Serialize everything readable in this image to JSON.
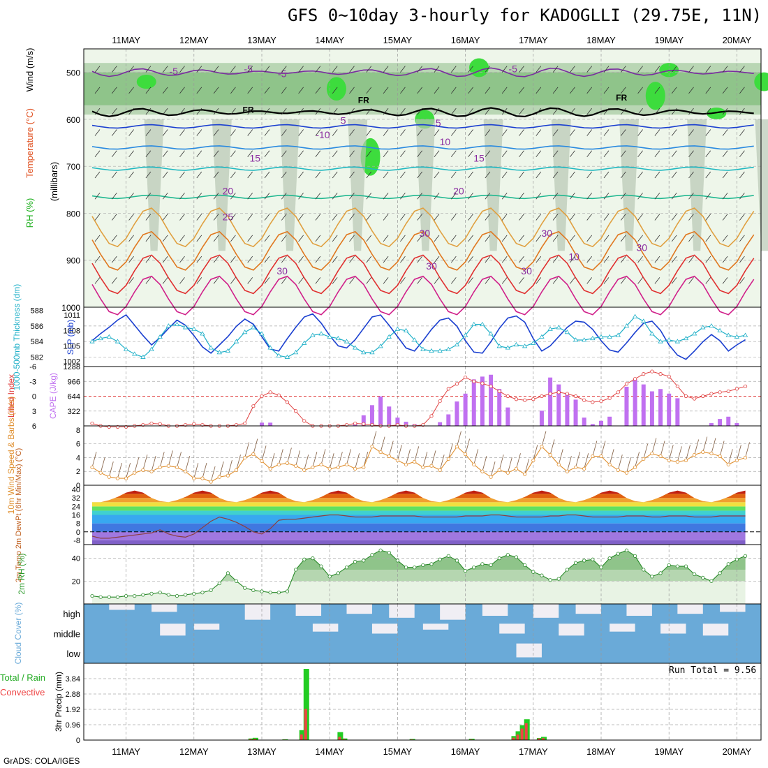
{
  "title": "GFS 0~10day 3-hourly for KADOGLLI (29.75E, 11N)",
  "credit": "GrADS: COLA/IGES",
  "run_total": "Run Total = 9.56",
  "dates": [
    "11MAY",
    "12MAY",
    "13MAY",
    "14MAY",
    "15MAY",
    "16MAY",
    "17MAY",
    "18MAY",
    "19MAY",
    "20MAY"
  ],
  "panel_labels": {
    "upper": [
      {
        "text": "RH (%)",
        "color": "#20b020"
      },
      {
        "text": "Temperature (°C)",
        "color": "#e05020"
      },
      {
        "text": "Wind (m/s)",
        "color": "#000000"
      }
    ],
    "upper_sub": "(millibars)",
    "thick": "1000-500mb Thickness (dm)",
    "slp": "SLP (mb)",
    "li": "Lifted Index",
    "cape": "CAPE (J/kg)",
    "wind10": "10m Wind Speed & Barbs (m/s)",
    "t2m": "2m Temp 2m DewPt (6hr Min/Max) (°C)",
    "rh2m": "2m RH (%)",
    "cloud": "Cloud Cover (%)",
    "precip_lab1": "Total / Rain",
    "precip_lab2": "Convective",
    "precip_lab3": "3hr Precip (mm)"
  },
  "colors": {
    "slp": "#1a3fd0",
    "thick": "#20b0c8",
    "li": "#e04040",
    "cape": "#c070f0",
    "wind": "#e09030",
    "barb": "#8b6a50",
    "rh_line": "#2a8a2a",
    "cloud": "#6aaad8",
    "precip_total": "#22cc22",
    "precip_conv": "#ee4444"
  },
  "chart_data": [
    {
      "type": "heatmap",
      "name": "vertical profile",
      "ylabel": "(millibars)",
      "ylim": [
        1000,
        450
      ],
      "yticks": [
        500,
        600,
        700,
        800,
        900,
        1000
      ],
      "temperature_contour_labels": [
        "-5",
        "-5",
        "-5",
        "-5",
        "5",
        "5",
        "-10",
        "10",
        "15",
        "15",
        "20",
        "20",
        "25",
        "30",
        "30",
        "30",
        "10",
        "30",
        "30",
        "30"
      ],
      "freezing_level_labels": [
        "FR",
        "FR",
        "FR"
      ],
      "isotherms_hpa": [
        {
          "temp": -5,
          "level": 500,
          "color": "#7a2ca0"
        },
        {
          "temp": 0,
          "level": 585,
          "color": "#000000"
        },
        {
          "temp": 5,
          "level": 615,
          "color": "#1a3fd0"
        },
        {
          "temp": 10,
          "level": 660,
          "color": "#2a8ae0"
        },
        {
          "temp": 15,
          "level": 705,
          "color": "#20b8c0"
        },
        {
          "temp": 20,
          "level": 765,
          "color": "#20b890"
        },
        {
          "temp": 25,
          "level": 830,
          "color": "#e0a040"
        },
        {
          "temp": 30,
          "level": 880,
          "color": "#e07820"
        },
        {
          "temp": 35,
          "level": 930,
          "color": "#e03030"
        },
        {
          "temp": 40,
          "level": 975,
          "color": "#d0208a"
        }
      ]
    },
    {
      "type": "line",
      "name": "SLP and thickness",
      "yticks_thick": [
        582,
        584,
        586,
        588
      ],
      "yticks_slp": [
        1002,
        1005,
        1008,
        1011
      ],
      "series": [
        {
          "name": "SLP (mb)",
          "values": [
            1006.0,
            1007.4,
            1008.6,
            1010.0,
            1011.0,
            1009.0,
            1007.0,
            1005.2,
            1006.6,
            1008.4,
            1010.0,
            1009.0,
            1007.0,
            1004.8,
            1003.6,
            1005.2,
            1006.8,
            1008.8,
            1010.2,
            1009.2,
            1006.8,
            1004.4,
            1004.0,
            1006.4,
            1008.6,
            1010.6,
            1011.2,
            1009.4,
            1007.0,
            1005.0,
            1004.6,
            1006.2,
            1008.4,
            1010.6,
            1011.0,
            1009.0,
            1006.8,
            1004.6,
            1004.0,
            1006.0,
            1008.2,
            1010.0,
            1010.4,
            1008.8,
            1006.0,
            1003.8,
            1003.6,
            1005.8,
            1008.4,
            1010.4,
            1010.8,
            1009.6,
            1006.4,
            1004.0,
            1005.0,
            1006.8,
            1008.6,
            1009.8,
            1009.6,
            1008.2,
            1006.0,
            1004.2,
            1003.8,
            1005.6,
            1007.6,
            1009.4,
            1009.8,
            1008.0,
            1005.2,
            1003.2,
            1002.4,
            1004.0,
            1005.8,
            1007.2,
            1006.0,
            1004.0,
            1005.2,
            1006.2
          ]
        },
        {
          "name": "1000-500mb Thickness (dm)",
          "values": [
            584.0,
            584.4,
            584.6,
            584.0,
            583.0,
            582.4,
            582.0,
            583.0,
            584.6,
            586.0,
            586.2,
            585.8,
            585.6,
            585.0,
            583.2,
            582.6,
            582.8,
            584.0,
            585.2,
            585.8,
            585.0,
            583.2,
            582.2,
            582.0,
            582.6,
            583.8,
            584.8,
            585.0,
            584.6,
            584.4,
            584.0,
            583.2,
            582.6,
            582.6,
            583.4,
            584.6,
            585.6,
            585.4,
            584.2,
            583.0,
            582.8,
            582.8,
            583.0,
            583.6,
            584.8,
            586.2,
            586.2,
            585.0,
            583.4,
            583.2,
            583.6,
            583.4,
            583.8,
            584.6,
            585.6,
            585.8,
            585.2,
            584.2,
            584.2,
            584.4,
            584.6,
            584.6,
            584.8,
            586.0,
            587.2,
            586.6,
            585.0,
            584.0,
            584.2,
            584.0,
            584.4,
            585.0,
            585.8,
            586.0,
            585.4,
            584.8,
            584.6,
            584.8
          ]
        }
      ]
    },
    {
      "type": "bar",
      "name": "CAPE and Lifted Index",
      "yticks_li": [
        -6,
        -3,
        0,
        3,
        6
      ],
      "yticks_cape": [
        322,
        644,
        966,
        1288
      ],
      "series": [
        {
          "name": "CAPE (J/kg)",
          "values": [
            0,
            0,
            0,
            0,
            0,
            0,
            0,
            0,
            0,
            0,
            0,
            0,
            0,
            0,
            0,
            0,
            0,
            0,
            0,
            0,
            70,
            70,
            0,
            0,
            0,
            0,
            0,
            0,
            0,
            0,
            0,
            0,
            0,
            0,
            0,
            0,
            0,
            0,
            0,
            0,
            0,
            80,
            250,
            430,
            630,
            410,
            180,
            100,
            60,
            0,
            0,
            0,
            0,
            0,
            0,
            0,
            0,
            0,
            0,
            0,
            0,
            0,
            0,
            0,
            0,
            0,
            0,
            0,
            0,
            0,
            0,
            0,
            0,
            0,
            0,
            0,
            0,
            0
          ]
        },
        {
          "name": "Lifted Index",
          "values": [
            5.5,
            6.0,
            6.2,
            6.2,
            6.2,
            6.0,
            5.8,
            5.5,
            5.6,
            6.0,
            6.0,
            5.8,
            5.6,
            5.8,
            6.0,
            6.0,
            6.0,
            5.8,
            5.5,
            2.0,
            0.0,
            -0.8,
            -0.2,
            1.2,
            3.0,
            5.0,
            6.0,
            6.0,
            6.0,
            6.0,
            5.8,
            5.5,
            5.6,
            5.8,
            6.0,
            6.0,
            5.8,
            6.0,
            6.0,
            5.8,
            4.0,
            1.0,
            -1.5,
            -2.5,
            -3.8,
            -3.0,
            -2.6,
            -2.0,
            -1.0,
            0.0,
            0.6,
            0.8,
            0.6,
            0.0,
            -0.5,
            -0.8,
            -0.5,
            0.0,
            0.8,
            1.2,
            1.0,
            0.4,
            -0.8,
            -2.5,
            -3.5,
            -4.5,
            -5.0,
            -4.5,
            -4.0,
            -2.0,
            0.0,
            0.5,
            0.0,
            -0.5,
            -0.8,
            -1.0,
            -1.5,
            -2.0
          ]
        }
      ]
    },
    {
      "type": "line",
      "name": "10m wind",
      "ylim": [
        0,
        8
      ],
      "yticks": [
        0,
        2,
        4,
        6,
        8
      ],
      "series": [
        {
          "name": "10m Wind Speed (m/s)",
          "values": [
            2.6,
            1.8,
            1.2,
            1.0,
            1.0,
            1.8,
            2.2,
            2.0,
            2.6,
            2.8,
            2.6,
            2.0,
            1.0,
            1.0,
            0.5,
            1.2,
            1.4,
            2.2,
            4.0,
            4.5,
            3.5,
            2.4,
            3.0,
            3.2,
            2.8,
            2.2,
            2.6,
            3.0,
            2.4,
            2.6,
            3.0,
            2.4,
            2.6,
            5.6,
            4.8,
            4.2,
            3.6,
            3.0,
            3.4,
            2.6,
            2.8,
            2.2,
            3.8,
            5.6,
            4.5,
            3.0,
            2.0,
            1.2,
            2.2,
            1.8,
            2.4,
            1.6,
            3.6,
            5.6,
            4.4,
            3.0,
            2.0,
            2.6,
            2.4,
            4.2,
            4.2,
            3.0,
            2.2,
            1.8,
            2.6,
            3.8,
            4.6,
            4.2,
            3.6,
            3.4,
            3.6,
            4.4,
            4.8,
            4.6,
            4.2,
            3.0,
            3.6,
            4.0
          ]
        }
      ]
    },
    {
      "type": "area",
      "name": "2m temperature",
      "ylim": [
        -8,
        44
      ],
      "yticks": [
        -8,
        0,
        8,
        16,
        24,
        32,
        40
      ],
      "series": [
        {
          "name": "2m Temp (°C)",
          "values": [
            28,
            28,
            30,
            33,
            37,
            39,
            37,
            32,
            29,
            28,
            30,
            33,
            37,
            39,
            37,
            32,
            29,
            28,
            30,
            33,
            37,
            39,
            37,
            32,
            29,
            28,
            30,
            33,
            37,
            39,
            37,
            32,
            29,
            28,
            30,
            33,
            37,
            39,
            37,
            32,
            29,
            28,
            30,
            33,
            37,
            39,
            37,
            32,
            29,
            28,
            30,
            33,
            37,
            39,
            37,
            32,
            29,
            28,
            30,
            33,
            37,
            39,
            37,
            32,
            29,
            28,
            30,
            33,
            37,
            39,
            37,
            32,
            29,
            28,
            30,
            33,
            37,
            39
          ]
        },
        {
          "name": "2m DewPt (°C)",
          "values": [
            -4,
            -6,
            -6,
            -5,
            -4,
            -3,
            -2,
            -1,
            2,
            -2,
            -4,
            -5,
            -2,
            4,
            10,
            14,
            12,
            9,
            5,
            0,
            -2,
            3,
            11,
            12,
            12,
            13,
            14,
            15,
            16,
            16,
            15,
            14,
            14,
            14,
            15,
            15,
            15,
            15,
            15,
            14,
            14,
            14,
            14,
            14,
            15,
            15,
            15,
            16,
            16,
            15,
            14,
            14,
            14,
            14,
            15,
            15,
            16,
            16,
            15,
            14,
            14,
            14,
            14,
            15,
            15,
            15,
            14,
            14,
            15,
            15,
            15,
            14,
            14,
            14,
            15,
            15,
            15,
            15
          ]
        }
      ]
    },
    {
      "type": "area",
      "name": "2m RH",
      "ylim": [
        0,
        50
      ],
      "yticks": [
        20,
        40
      ],
      "series": [
        {
          "name": "2m RH (%)",
          "values": [
            7,
            6,
            6,
            6,
            7,
            7,
            8,
            9,
            10,
            8,
            7,
            8,
            9,
            10,
            12,
            18,
            27,
            20,
            14,
            12,
            11,
            10,
            10,
            11,
            30,
            39,
            40,
            33,
            24,
            27,
            32,
            37,
            38,
            43,
            47,
            45,
            38,
            32,
            32,
            34,
            35,
            39,
            42,
            38,
            29,
            32,
            35,
            34,
            40,
            43,
            41,
            34,
            28,
            25,
            21,
            22,
            30,
            36,
            38,
            39,
            32,
            40,
            44,
            47,
            42,
            30,
            24,
            27,
            34,
            33,
            33,
            26,
            23,
            20,
            27,
            35,
            39,
            42
          ]
        }
      ]
    },
    {
      "type": "heatmap",
      "name": "Cloud Cover",
      "categories": [
        "high",
        "middle",
        "low"
      ],
      "ylabel": "(%)"
    },
    {
      "type": "bar",
      "name": "3hr Precip",
      "ylim": [
        0,
        4.8
      ],
      "yticks": [
        0,
        0.96,
        1.92,
        2.88,
        3.84
      ],
      "ylabel": "3hr Precip (mm)",
      "bars": [
        {
          "i": 37.5,
          "total": 0.1,
          "conv": 0.06
        },
        {
          "i": 38.5,
          "total": 0.14,
          "conv": 0.08
        },
        {
          "i": 45.5,
          "total": 0.05,
          "conv": 0.03
        },
        {
          "i": 49.5,
          "total": 0.62,
          "conv": 0.35
        },
        {
          "i": 50.5,
          "total": 4.45,
          "conv": 1.95
        },
        {
          "i": 58.5,
          "total": 0.5,
          "conv": 0.2
        },
        {
          "i": 59.5,
          "total": 0.1,
          "conv": 0.05
        },
        {
          "i": 75.5,
          "total": 0.07,
          "conv": 0.04
        },
        {
          "i": 89.5,
          "total": 0.08,
          "conv": 0.04
        },
        {
          "i": 99.5,
          "total": 0.25,
          "conv": 0.15
        },
        {
          "i": 100.5,
          "total": 0.55,
          "conv": 0.35
        },
        {
          "i": 101.5,
          "total": 0.93,
          "conv": 0.72
        },
        {
          "i": 102.5,
          "total": 1.3,
          "conv": 1.05
        },
        {
          "i": 105.5,
          "total": 0.13,
          "conv": 0.1
        },
        {
          "i": 106.5,
          "total": 0.2,
          "conv": 0.12
        }
      ]
    }
  ]
}
